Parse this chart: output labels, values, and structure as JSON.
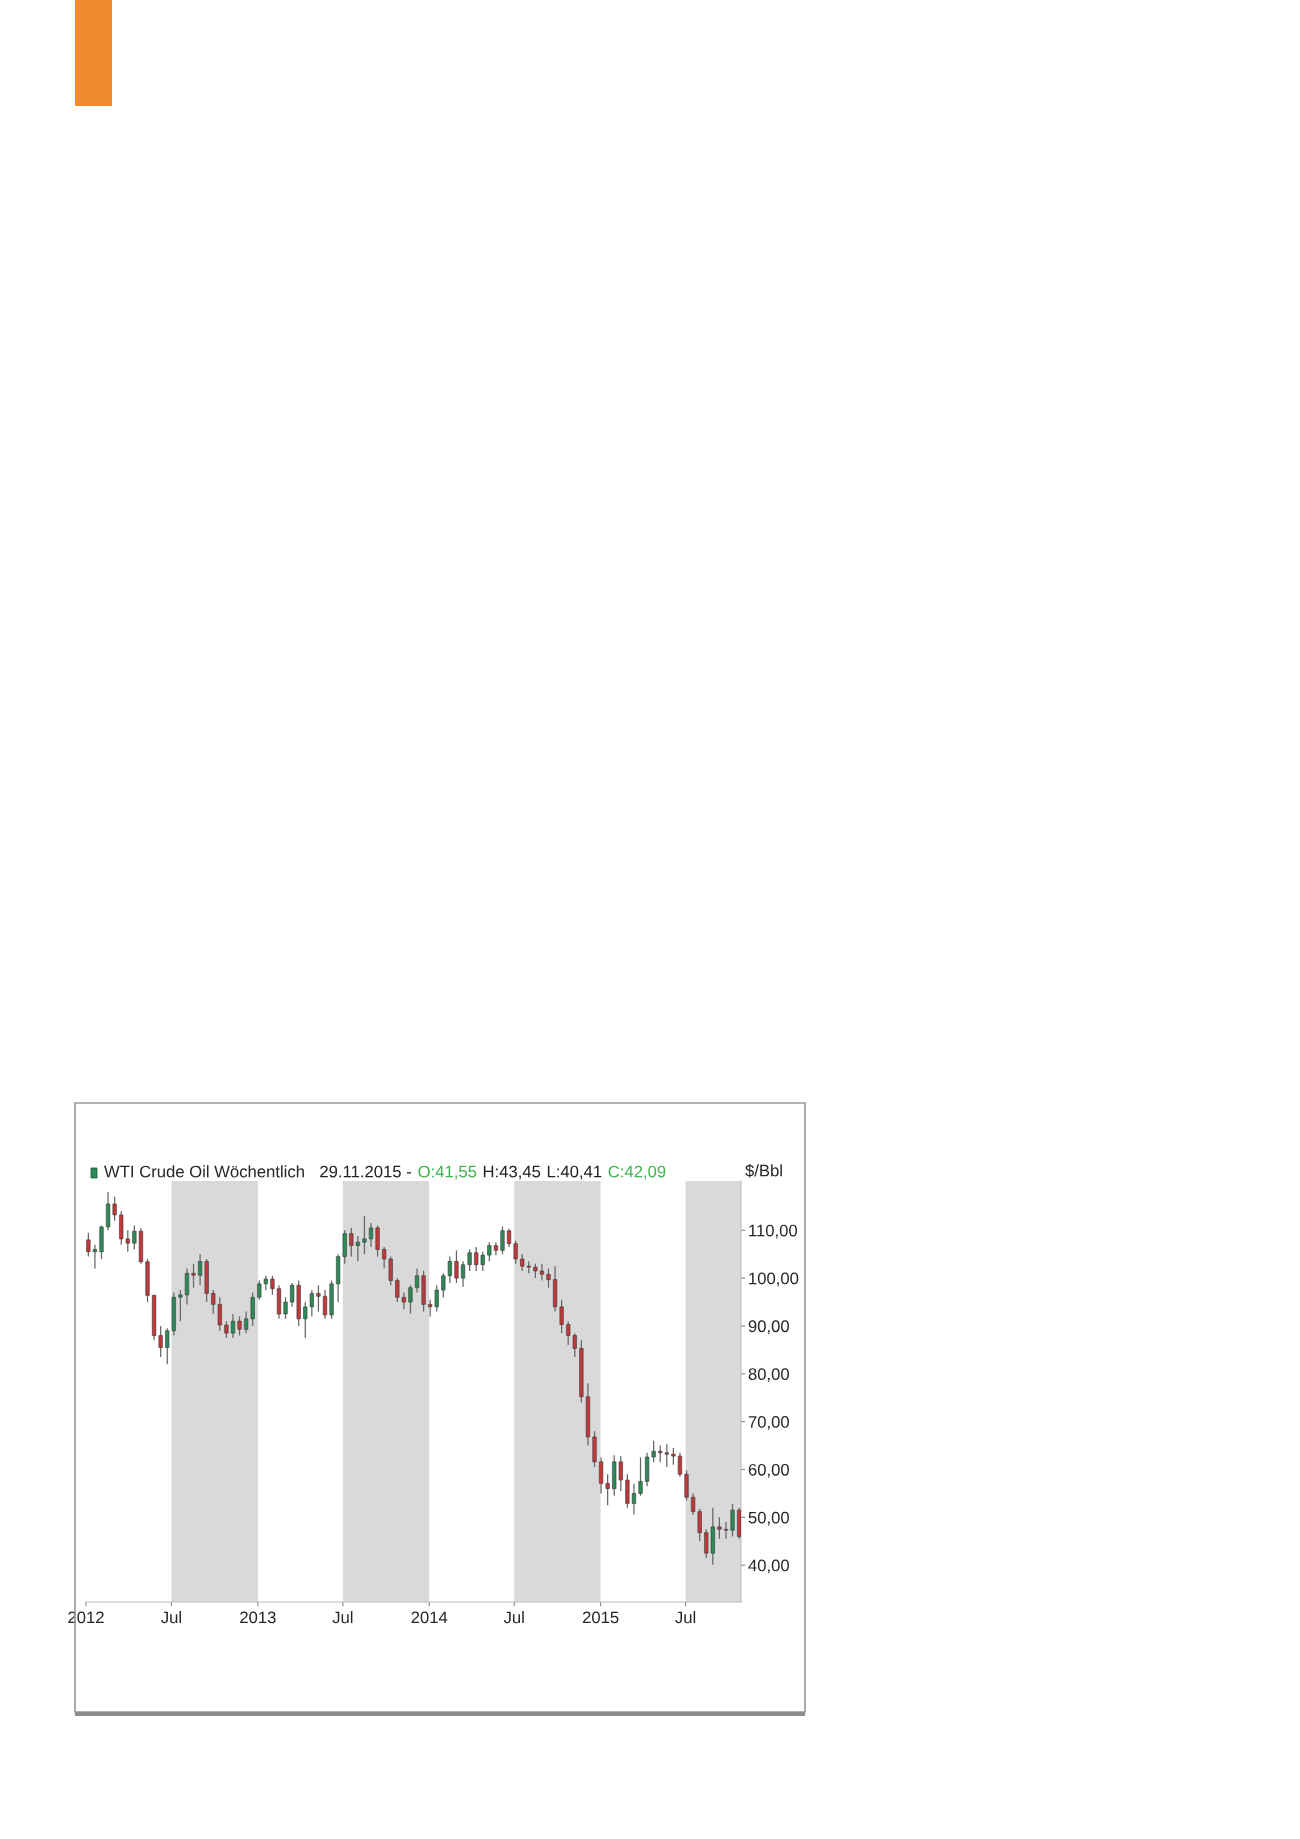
{
  "chart_data": {
    "type": "candlestick",
    "title": "WTI Crude Oil Wöchentlich",
    "ylabel": "$/Bbl",
    "annotations": [
      "29.11.2015 -",
      "O:41,55",
      "H:43,45",
      "L:40,41",
      "C:42,09"
    ],
    "colors": [
      "#c0393b",
      "#2e8b57",
      "#2e8b57",
      "#2e8b57",
      "#c0393b",
      "#c0393b",
      "#c0393b",
      "#2e8b57",
      "#c0393b",
      "#c0393b",
      "#c0393b",
      "#c0393b",
      "#2e8b57",
      "#2e8b57",
      "#2e8b57",
      "#2e8b57",
      "#c0393b",
      "#2e8b57",
      "#c0393b",
      "#c0393b",
      "#c0393b",
      "#c0393b",
      "#2e8b57",
      "#c0393b",
      "#2e8b57",
      "#2e8b57",
      "#2e8b57",
      "#2e8b57",
      "#c0393b",
      "#c0393b",
      "#2e8b57",
      "#2e8b57",
      "#c0393b",
      "#2e8b57",
      "#2e8b57",
      "#c0393b",
      "#c0393b",
      "#2e8b57",
      "#2e8b57",
      "#2e8b57",
      "#c0393b",
      "#2e8b57",
      "#2e8b57",
      "#2e8b57",
      "#c0393b",
      "#c0393b",
      "#c0393b",
      "#c0393b",
      "#c0393b",
      "#2e8b57",
      "#2e8b57",
      "#c0393b",
      "#c0393b",
      "#2e8b57",
      "#2e8b57",
      "#2e8b57",
      "#c0393b",
      "#2e8b57",
      "#2e8b57",
      "#c0393b",
      "#2e8b57",
      "#2e8b57",
      "#c0393b",
      "#2e8b57",
      "#c0393b",
      "#c0393b",
      "#c0393b",
      "#c0393b",
      "#c0393b",
      "#c0393b",
      "#c0393b",
      "#c0393b",
      "#c0393b",
      "#c0393b",
      "#c0393b",
      "#c0393b",
      "#c0393b",
      "#c0393b",
      "#c0393b",
      "#c0393b",
      "#2e8b57",
      "#c0393b",
      "#c0393b",
      "#2e8b57",
      "#2e8b57",
      "#2e8b57",
      "#2e8b57",
      "#c0393b",
      "#c0393b",
      "#c0393b",
      "#c0393b",
      "#c0393b",
      "#c0393b",
      "#c0393b",
      "#c0393b",
      "#2e8b57",
      "#c0393b",
      "#c0393b",
      "#2e8b57",
      "#c0393b"
    ],
    "x": [
      "2012-01-06",
      "2012-01-20",
      "2012-02-03",
      "2012-02-17",
      "2012-03-02",
      "2012-03-16",
      "2012-03-30",
      "2012-04-13",
      "2012-04-27",
      "2012-05-11",
      "2012-05-25",
      "2012-06-08",
      "2012-06-22",
      "2012-07-06",
      "2012-07-20",
      "2012-08-03",
      "2012-08-17",
      "2012-08-31",
      "2012-09-14",
      "2012-09-28",
      "2012-10-12",
      "2012-10-26",
      "2012-11-09",
      "2012-11-23",
      "2012-12-07",
      "2012-12-21",
      "2013-01-04",
      "2013-01-18",
      "2013-02-01",
      "2013-02-15",
      "2013-03-01",
      "2013-03-15",
      "2013-03-29",
      "2013-04-12",
      "2013-04-26",
      "2013-05-10",
      "2013-05-24",
      "2013-06-07",
      "2013-06-21",
      "2013-07-05",
      "2013-07-19",
      "2013-08-02",
      "2013-08-16",
      "2013-08-30",
      "2013-09-13",
      "2013-09-27",
      "2013-10-11",
      "2013-10-25",
      "2013-11-08",
      "2013-11-22",
      "2013-12-06",
      "2013-12-20",
      "2014-01-03",
      "2014-01-17",
      "2014-01-31",
      "2014-02-14",
      "2014-02-28",
      "2014-03-14",
      "2014-03-28",
      "2014-04-11",
      "2014-04-25",
      "2014-05-09",
      "2014-05-23",
      "2014-06-06",
      "2014-06-20",
      "2014-07-04",
      "2014-07-18",
      "2014-08-01",
      "2014-08-15",
      "2014-08-29",
      "2014-09-12",
      "2014-09-26",
      "2014-10-10",
      "2014-10-24",
      "2014-11-07",
      "2014-11-21",
      "2014-12-05",
      "2014-12-19",
      "2015-01-02",
      "2015-01-16",
      "2015-01-30",
      "2015-02-13",
      "2015-02-27",
      "2015-03-13",
      "2015-03-27",
      "2015-04-10",
      "2015-04-24",
      "2015-05-08",
      "2015-05-22",
      "2015-06-05",
      "2015-06-19",
      "2015-07-03",
      "2015-07-17",
      "2015-07-31",
      "2015-08-14",
      "2015-08-28",
      "2015-09-11",
      "2015-09-25",
      "2015-10-09",
      "2015-10-23"
    ],
    "ohlc": [
      [
        108,
        109.5,
        104.5,
        105.5
      ],
      [
        105.5,
        107,
        102,
        106
      ],
      [
        105.5,
        111,
        104,
        110.7
      ],
      [
        110.7,
        118,
        110,
        115.5
      ],
      [
        115.5,
        117,
        112,
        113.2
      ],
      [
        113.2,
        114,
        107,
        108.2
      ],
      [
        108.2,
        110,
        105.5,
        107.3
      ],
      [
        107.3,
        111,
        106,
        109.8
      ],
      [
        109.8,
        110.5,
        103,
        103.4
      ],
      [
        103.4,
        104,
        95,
        96.4
      ],
      [
        96.4,
        96.5,
        87,
        88
      ],
      [
        88,
        90,
        83.5,
        85.5
      ],
      [
        85.5,
        89.5,
        82,
        89
      ],
      [
        89,
        97,
        88,
        96
      ],
      [
        96,
        97.5,
        91,
        96.5
      ],
      [
        96.5,
        102,
        94.5,
        101
      ],
      [
        101,
        103,
        98,
        100.6
      ],
      [
        100.6,
        105,
        98.5,
        103.5
      ],
      [
        103.5,
        104,
        95,
        96.8
      ],
      [
        96.8,
        97.5,
        92.5,
        94.5
      ],
      [
        94.5,
        96,
        89,
        90.2
      ],
      [
        90.2,
        91,
        87.5,
        88.5
      ],
      [
        88.5,
        92.5,
        87.5,
        91
      ],
      [
        91,
        92,
        88,
        89.3
      ],
      [
        89.3,
        93,
        88.5,
        91.5
      ],
      [
        91.5,
        97,
        90,
        96
      ],
      [
        96,
        99.5,
        95.5,
        98.8
      ],
      [
        98.8,
        100.5,
        97.5,
        99.8
      ],
      [
        99.8,
        100.5,
        96.5,
        97.8
      ],
      [
        97.8,
        98.5,
        91.5,
        92.5
      ],
      [
        92.5,
        96,
        91.5,
        95
      ],
      [
        95,
        99,
        94,
        98.5
      ],
      [
        98.5,
        99.5,
        90,
        91.5
      ],
      [
        91.5,
        95,
        87.5,
        94
      ],
      [
        94,
        97.5,
        92,
        96.8
      ],
      [
        96.8,
        98.5,
        93,
        96.2
      ],
      [
        96.2,
        97.5,
        91.5,
        92.3
      ],
      [
        92.3,
        99.5,
        91.5,
        98.8
      ],
      [
        98.8,
        105,
        95,
        104.5
      ],
      [
        104.5,
        110,
        103,
        109.3
      ],
      [
        109.3,
        110.5,
        104.5,
        106.8
      ],
      [
        106.8,
        108.8,
        103.5,
        107.5
      ],
      [
        107.5,
        113,
        105,
        108.2
      ],
      [
        108.2,
        111.5,
        106.5,
        110.5
      ],
      [
        110.5,
        111,
        104.5,
        106
      ],
      [
        106,
        106.5,
        102,
        104
      ],
      [
        104,
        104.5,
        98.5,
        99.5
      ],
      [
        99.5,
        100,
        95,
        96
      ],
      [
        96,
        97,
        93.5,
        95
      ],
      [
        95,
        98.5,
        92.6,
        98
      ],
      [
        98,
        102,
        97,
        100.5
      ],
      [
        100.5,
        101.5,
        93,
        94.5
      ],
      [
        94.5,
        95.5,
        92,
        94
      ],
      [
        94,
        98.5,
        93,
        97.5
      ],
      [
        97.5,
        101,
        96,
        100.5
      ],
      [
        100.5,
        104.5,
        99,
        103.5
      ],
      [
        103.5,
        105.8,
        99,
        100
      ],
      [
        100,
        103.5,
        98.2,
        102.8
      ],
      [
        102.8,
        106,
        101.5,
        105.3
      ],
      [
        105.3,
        106.5,
        101.5,
        102.8
      ],
      [
        102.8,
        105.5,
        101.5,
        104.8
      ],
      [
        104.8,
        107.5,
        103.5,
        106.8
      ],
      [
        106.8,
        107.5,
        104.8,
        105.8
      ],
      [
        105.8,
        110.8,
        105,
        109.9
      ],
      [
        109.9,
        110.3,
        106.5,
        107.2
      ],
      [
        107.2,
        107.8,
        103,
        104
      ],
      [
        104,
        105,
        101.5,
        102.5
      ],
      [
        102.5,
        103.5,
        101,
        102.3
      ],
      [
        102.3,
        103,
        100,
        101.5
      ],
      [
        101.5,
        103,
        99.5,
        100.8
      ],
      [
        100.8,
        102,
        98,
        99.7
      ],
      [
        99.7,
        102.5,
        93,
        94
      ],
      [
        94,
        95.5,
        88.5,
        90.3
      ],
      [
        90.3,
        91,
        86,
        88
      ],
      [
        88,
        88.5,
        83.5,
        85.3
      ],
      [
        85.3,
        87,
        74,
        75.2
      ],
      [
        75.2,
        78,
        65,
        66.8
      ],
      [
        66.8,
        68,
        60.5,
        61.6
      ],
      [
        61.6,
        62.5,
        55,
        57.1
      ],
      [
        57.1,
        59,
        52.5,
        56
      ],
      [
        56,
        63,
        54.5,
        61.6
      ],
      [
        61.6,
        62.8,
        55.5,
        57.8
      ],
      [
        57.8,
        59,
        52,
        52.9
      ],
      [
        52.9,
        57,
        50.6,
        55
      ],
      [
        55,
        62.5,
        54.5,
        57.5
      ],
      [
        57.5,
        63.5,
        56.5,
        62.6
      ],
      [
        62.6,
        66,
        61.5,
        63.8
      ],
      [
        63.8,
        65,
        61.5,
        63.5
      ],
      [
        63.5,
        65.3,
        60.5,
        63.2
      ],
      [
        63.2,
        64.5,
        61,
        62.8
      ],
      [
        62.8,
        63.5,
        58.5,
        59
      ],
      [
        59,
        59.8,
        53.5,
        54.2
      ],
      [
        54.2,
        55,
        50.5,
        51.2
      ],
      [
        51.2,
        51.8,
        45,
        46.8
      ],
      [
        46.8,
        47.5,
        41.5,
        42.5
      ],
      [
        42.5,
        52,
        40.1,
        48
      ],
      [
        48,
        50,
        45.5,
        47.5
      ],
      [
        47.5,
        49,
        45.5,
        47.3
      ],
      [
        47.3,
        52.8,
        46,
        51.5
      ],
      [
        51.5,
        52,
        45.5,
        46
      ]
    ],
    "xlim": [
      "2012-01-01",
      "2015-10-27"
    ],
    "ylim": [
      32.3,
      120.3
    ],
    "xticks": [
      {
        "value": "2012-01-01",
        "label": "2012"
      },
      {
        "value": "2012-07-01",
        "label": "Jul"
      },
      {
        "value": "2013-01-01",
        "label": "2013"
      },
      {
        "value": "2013-07-01",
        "label": "Jul"
      },
      {
        "value": "2014-01-01",
        "label": "2014"
      },
      {
        "value": "2014-07-01",
        "label": "Jul"
      },
      {
        "value": "2015-01-01",
        "label": "2015"
      },
      {
        "value": "2015-07-01",
        "label": "Jul"
      }
    ],
    "yticks": [
      {
        "value": 40,
        "label": "40,00"
      },
      {
        "value": 50,
        "label": "50,00"
      },
      {
        "value": 60,
        "label": "60,00"
      },
      {
        "value": 70,
        "label": "70,00"
      },
      {
        "value": 80,
        "label": "80,00"
      },
      {
        "value": 90,
        "label": "90,00"
      },
      {
        "value": 100,
        "label": "100,00"
      },
      {
        "value": 110,
        "label": "110,00"
      }
    ],
    "bands": [
      {
        "axis": "x",
        "from": "2012-07-01",
        "to": "2013-01-01",
        "color": "#d9d9d9"
      },
      {
        "axis": "x",
        "from": "2013-07-01",
        "to": "2014-01-01",
        "color": "#d9d9d9"
      },
      {
        "axis": "x",
        "from": "2014-07-01",
        "to": "2015-01-01",
        "color": "#d9d9d9"
      },
      {
        "axis": "x",
        "from": "2015-07-01",
        "to": "2015-10-27",
        "color": "#d9d9d9"
      }
    ],
    "grid": false,
    "legend": false
  }
}
